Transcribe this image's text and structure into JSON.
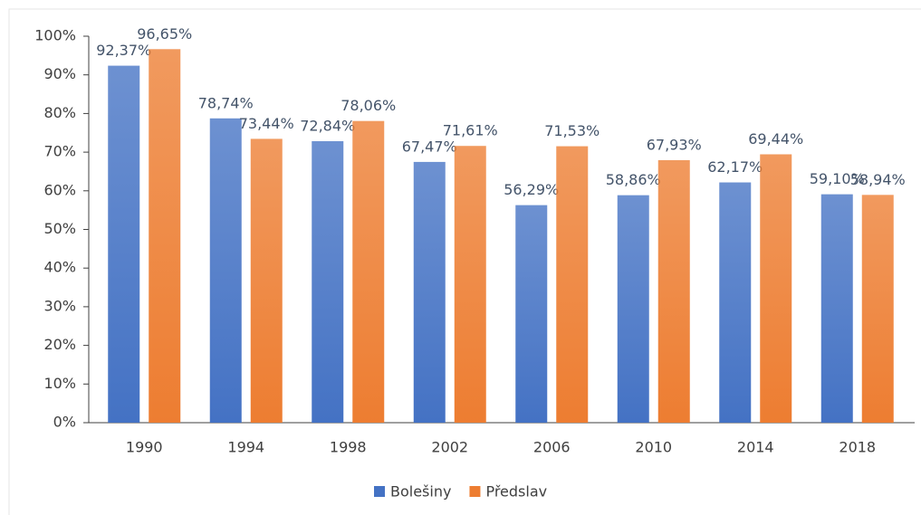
{
  "chart_data": {
    "type": "bar",
    "categories": [
      "1990",
      "1994",
      "1998",
      "2002",
      "2006",
      "2010",
      "2014",
      "2018"
    ],
    "series": [
      {
        "name": "Bolešiny",
        "color": "#4472c4",
        "values": [
          92.37,
          78.74,
          72.84,
          67.47,
          56.29,
          58.86,
          62.17,
          59.1
        ],
        "value_labels": [
          "92,37%",
          "78,74%",
          "72,84%",
          "67,47%",
          "56,29%",
          "58,86%",
          "62,17%",
          "59,10%"
        ]
      },
      {
        "name": "Předslav",
        "color": "#ed7d31",
        "values": [
          96.65,
          73.44,
          78.06,
          71.61,
          71.53,
          67.93,
          69.44,
          58.94
        ],
        "value_labels": [
          "96,65%",
          "73,44%",
          "78,06%",
          "71,61%",
          "71,53%",
          "67,93%",
          "69,44%",
          "58,94%"
        ]
      }
    ],
    "ylim": [
      0,
      100
    ],
    "yticks": [
      {
        "value": 0,
        "label": "0%"
      },
      {
        "value": 10,
        "label": "10%"
      },
      {
        "value": 20,
        "label": "20%"
      },
      {
        "value": 30,
        "label": "30%"
      },
      {
        "value": 40,
        "label": "40%"
      },
      {
        "value": 50,
        "label": "50%"
      },
      {
        "value": 60,
        "label": "60%"
      },
      {
        "value": 70,
        "label": "70%"
      },
      {
        "value": 80,
        "label": "80%"
      },
      {
        "value": 90,
        "label": "90%"
      },
      {
        "value": 100,
        "label": "100%"
      }
    ],
    "legend": "bottom"
  }
}
